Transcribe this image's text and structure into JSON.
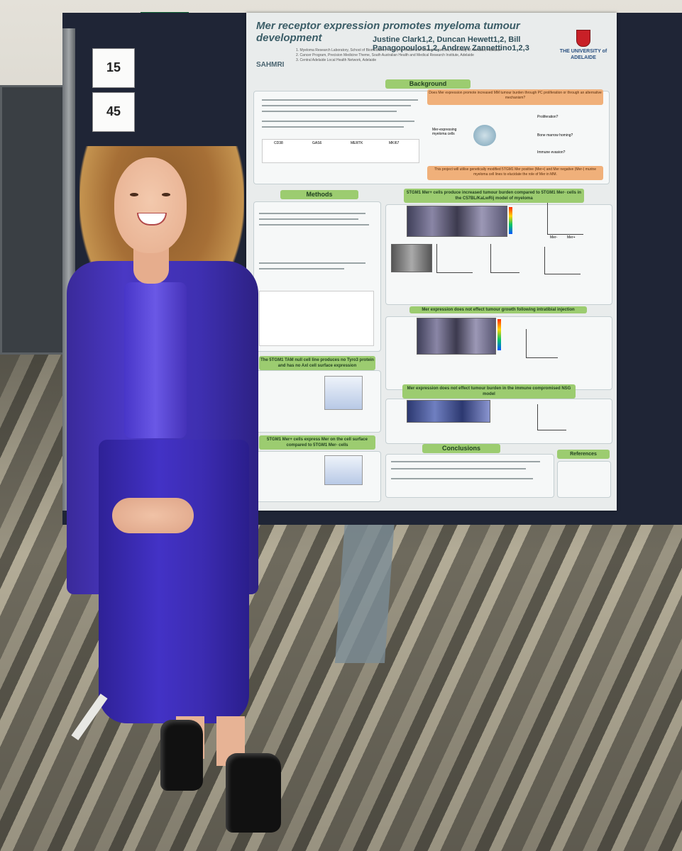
{
  "scene": {
    "board_numbers": [
      "15",
      "45"
    ]
  },
  "poster": {
    "title": "Mer receptor expression promotes myeloma tumour development",
    "authors": "Justine Clark1,2, Duncan Hewett1,2, Bill Panagopoulos1,2, Andrew Zannettino1,2,3",
    "affiliations": [
      "1. Myeloma Research Laboratory, School of Biomedicine, Faculty of Health and Medical Sciences, University of Adelaide, Adelaide",
      "2. Cancer Program, Precision Medicine Theme, South Australian Health and Medical Research Institute, Adelaide",
      "3. Central Adelaide Local Health Network, Adelaide"
    ],
    "institute_logo": "SAHMRI",
    "university_logo": "THE UNIVERSITY of ADELAIDE",
    "sections": {
      "background": "Background",
      "question": "Does Mer expression promote increased MM tumour burden through PC proliferation or through an alternative mechanism?",
      "aim": "This project will utilise genetically modified 5TGM1 Mer positive (Mer+) and Mer negative (Mer-) murine myeloma cell lines to elucidate the role of Mer in MM.",
      "methods": "Methods",
      "results_1": "5TGM1 Mer+ cells produce increased tumour burden compared to 5TGM1 Mer- cells in the C57BL/KaLwRij model of myeloma",
      "results_2": "Mer expression does not effect tumour growth following intratibial injection",
      "results_3": "Mer expression does not effect tumour burden in the immune compromised NSG model",
      "tam_null": "The 5TGM1 TAM null cell line produces no Tyro3 protein and has no Axl cell surface expression",
      "mer_surface": "5TGM1 Mer+ cells express Mer on the cell surface compared to 5TGM1 Mer- cells",
      "conclusions": "Conclusions",
      "references": "References"
    },
    "figure_labels": {
      "umap_genes": [
        "CD38",
        "GAS6",
        "MERTK",
        "MKI67"
      ],
      "diagram_nodes": [
        "Mer-expressing myeloma cells",
        "Proliferation?",
        "Bone marrow homing?",
        "Immune evasion?"
      ],
      "groups": [
        "Mer-",
        "Mer+"
      ]
    }
  },
  "colors": {
    "jacket": "#3e2fb0",
    "poster_green": "#9ccc70",
    "poster_orange": "#f0b07a",
    "board": "#1f2536"
  }
}
